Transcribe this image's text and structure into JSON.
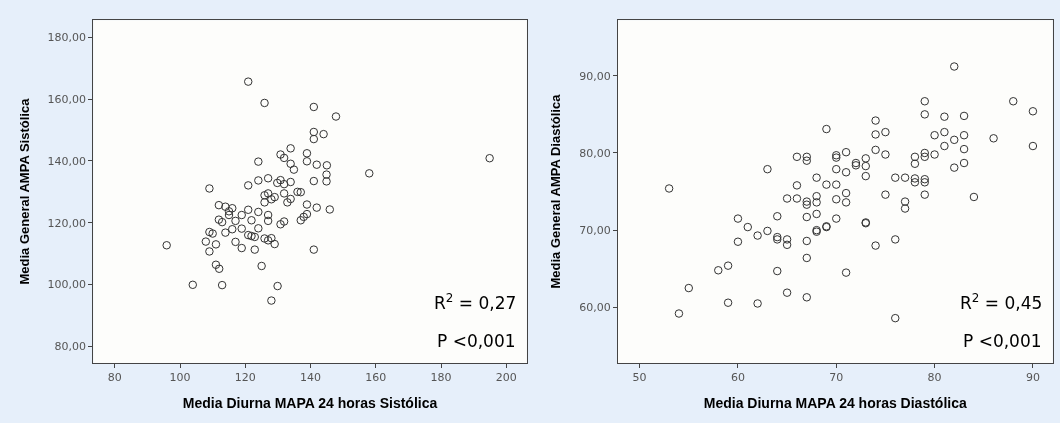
{
  "chart_data": [
    {
      "type": "scatter",
      "xlabel": "Media Diurna MAPA 24 horas Sistólica",
      "ylabel": "Media General AMPA Sistólica",
      "marker": "circle",
      "grid": false,
      "xlim": [
        73.4,
        206.3
      ],
      "ylim": [
        74.6,
        185.6
      ],
      "xticks": [
        80,
        100,
        120,
        140,
        160,
        180,
        200
      ],
      "yticks": [
        {
          "value": 80,
          "label": "80,00"
        },
        {
          "value": 100,
          "label": "100,00"
        },
        {
          "value": 120,
          "label": "120,00"
        },
        {
          "value": 140,
          "label": "140,00"
        },
        {
          "value": 160,
          "label": "160,00"
        },
        {
          "value": 180,
          "label": "180,00"
        }
      ],
      "annotations": [
        "R$^{2}$ = 0,27",
        "P <0,001"
      ],
      "series": [
        {
          "color": "#333333",
          "x": [
            120.9,
            125.9,
            141,
            147.8,
            141,
            144,
            141,
            133.9,
            138.9,
            130.8,
            131.9,
            124,
            138.9,
            141.9,
            133.9,
            145,
            134.9,
            194.9,
            158,
            144.9,
            144.9,
            127,
            124,
            130.8,
            129.8,
            120.9,
            109,
            131.9,
            133.9,
            141,
            125.9,
            127,
            129,
            128,
            131.9,
            136,
            137,
            132.9,
            133.9,
            125.9,
            138.9,
            141.9,
            145.9,
            111.9,
            113.9,
            116,
            115,
            124,
            120.9,
            118.9,
            127,
            138.9,
            137.9,
            137,
            130.8,
            131.9,
            127,
            111.9,
            112.9,
            117,
            121.9,
            115,
            116,
            113.9,
            118.9,
            124,
            109,
            110,
            120.9,
            121.9,
            122.9,
            125.9,
            128,
            127,
            129,
            107.9,
            111,
            117,
            95.9,
            118.9,
            122.9,
            141,
            109,
            111,
            112,
            125,
            103.9,
            112.9,
            129.9,
            128
          ],
          "values": [
            165.7,
            158.8,
            157.5,
            154.4,
            149.4,
            148.7,
            147.1,
            144.1,
            142.5,
            142.1,
            141,
            139.8,
            139.9,
            138.8,
            139.1,
            138.6,
            137.2,
            140.9,
            136,
            135.6,
            133.4,
            134.4,
            133.7,
            133.8,
            132.9,
            132.1,
            131.1,
            132.5,
            133.2,
            133.5,
            128.9,
            129.5,
            128.3,
            127.6,
            129.5,
            130,
            129.9,
            126.6,
            127.7,
            126.6,
            125.9,
            124.9,
            124.3,
            125.7,
            125.2,
            124.7,
            123.7,
            123.5,
            124.2,
            122.5,
            122.5,
            122.8,
            121.9,
            120.8,
            119.5,
            120.4,
            120.6,
            121,
            120.2,
            120.6,
            120.8,
            122.5,
            117.9,
            116.8,
            118.1,
            118.2,
            117,
            116.5,
            116,
            115.7,
            115.4,
            114.9,
            115,
            114.3,
            113.1,
            113.9,
            113,
            113.8,
            112.7,
            111.8,
            111.3,
            111.3,
            110.7,
            106.4,
            105.1,
            106,
            99.9,
            99.8,
            99.5,
            94.8
          ]
        }
      ]
    },
    {
      "type": "scatter",
      "xlabel": "Media Diurna MAPA 24 horas Diastólica",
      "ylabel": "Media General AMPA Diastólica",
      "marker": "circle",
      "grid": false,
      "xlim": [
        47.8,
        92.0
      ],
      "ylim": [
        52.8,
        97.2
      ],
      "xticks": [
        50,
        60,
        70,
        80,
        90
      ],
      "yticks": [
        {
          "value": 60,
          "label": "60,00"
        },
        {
          "value": 70,
          "label": "70,00"
        },
        {
          "value": 80,
          "label": "80,00"
        },
        {
          "value": 90,
          "label": "90,00"
        }
      ],
      "annotations": [
        "R$^{2}$ = 0,45",
        "P <0,001"
      ],
      "series": [
        {
          "color": "#333333",
          "x": [
            82,
            79,
            88,
            90,
            79,
            81,
            83,
            74,
            69,
            74,
            75,
            80,
            81,
            83,
            86,
            82,
            90,
            81,
            83,
            74,
            71,
            75,
            80,
            79,
            79,
            78,
            73,
            70,
            70,
            66,
            67,
            67,
            72,
            72,
            73,
            78,
            83,
            82,
            63,
            70,
            71,
            73,
            68,
            76,
            77,
            78,
            79,
            78,
            79,
            69,
            70,
            66,
            53,
            71,
            75,
            79,
            84,
            65,
            66,
            68,
            67,
            67,
            68,
            71,
            70,
            77,
            77,
            68,
            60,
            64,
            67,
            70,
            73,
            73,
            61,
            62,
            63,
            68,
            68,
            69,
            69,
            64,
            64,
            65,
            65,
            60,
            67,
            76,
            74,
            67,
            59,
            58,
            64,
            71,
            55,
            65,
            67,
            59,
            62,
            54,
            76
          ],
          "values": [
            91.2,
            86.7,
            86.7,
            85.4,
            85,
            84.7,
            84.8,
            84.2,
            83.1,
            82.4,
            82.7,
            82.3,
            82.7,
            82.3,
            81.9,
            81.7,
            80.9,
            80.9,
            80.5,
            80.4,
            80.1,
            79.8,
            79.8,
            80,
            79.5,
            79.5,
            79.3,
            79.7,
            79.4,
            79.5,
            79.5,
            79,
            78.7,
            78.4,
            78.3,
            78.6,
            78.7,
            78.1,
            77.9,
            77.9,
            77.5,
            77,
            76.8,
            76.8,
            76.8,
            76.7,
            76.6,
            76.2,
            76.2,
            75.9,
            75.9,
            75.8,
            75.4,
            74.8,
            74.6,
            74.6,
            74.3,
            74.1,
            74.1,
            74.4,
            73.7,
            73.3,
            73.6,
            73.6,
            74,
            73.7,
            72.8,
            72.1,
            71.5,
            71.8,
            71.7,
            71.5,
            71,
            70.9,
            70.4,
            69.3,
            69.9,
            70,
            69.8,
            70.5,
            70.4,
            69.1,
            68.8,
            68.8,
            68.1,
            68.5,
            68.6,
            68.8,
            68,
            66.4,
            65.4,
            64.8,
            64.7,
            64.5,
            62.5,
            61.9,
            61.3,
            60.6,
            60.5,
            59.2,
            58.6
          ]
        }
      ]
    }
  ]
}
